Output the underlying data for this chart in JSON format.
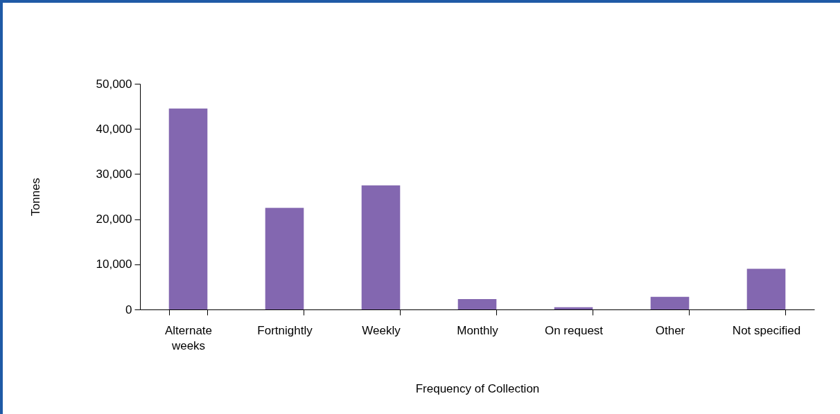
{
  "chart_data": {
    "type": "bar",
    "xlabel": "Frequency of Collection",
    "ylabel": "Tonnes",
    "categories": [
      "Alternate\nweeks",
      "Fortnightly",
      "Weekly",
      "Monthly",
      "On request",
      "Other",
      "Not specified"
    ],
    "values": [
      44500,
      22500,
      27500,
      2300,
      500,
      2800,
      9000
    ],
    "color": "#8367b0",
    "ylim": [
      0,
      50000
    ],
    "yticks": [
      {
        "value": 0,
        "label": "0"
      },
      {
        "value": 10000,
        "label": "10,000"
      },
      {
        "value": 20000,
        "label": "20,000"
      },
      {
        "value": 30000,
        "label": "30,000"
      },
      {
        "value": 40000,
        "label": "40,000"
      },
      {
        "value": 50000,
        "label": "50,000"
      }
    ],
    "grid": false
  }
}
